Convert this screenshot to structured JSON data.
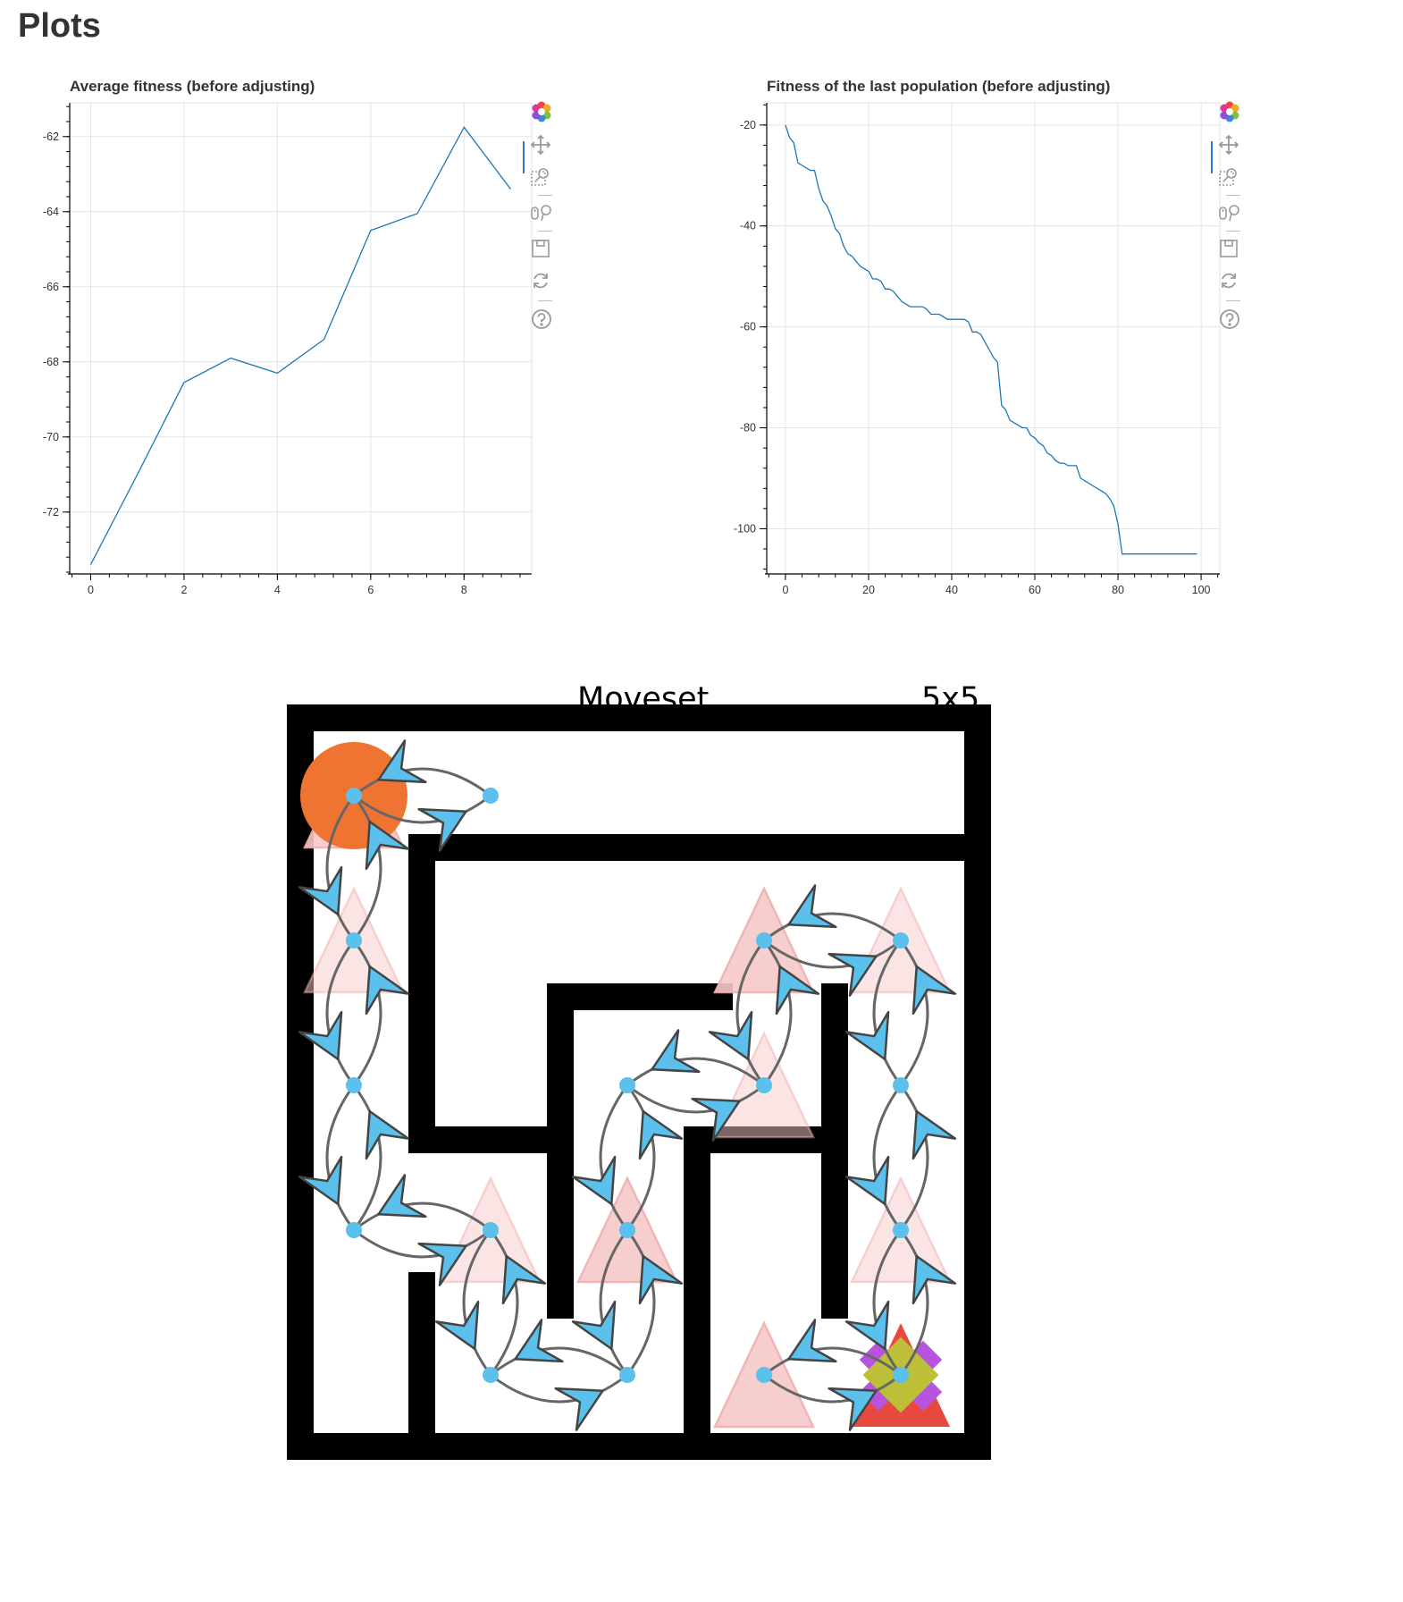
{
  "page": {
    "heading": "Plots"
  },
  "plots": [
    {
      "id": "avg",
      "title": "Average fitness (before adjusting)"
    },
    {
      "id": "last",
      "title": "Fitness of the last population (before adjusting)"
    }
  ],
  "toolbar": {
    "tools": [
      {
        "name": "bokeh-logo",
        "icon": "bokeh-logo-icon"
      },
      {
        "name": "pan-tool",
        "icon": "pan-icon"
      },
      {
        "name": "box-zoom-tool",
        "icon": "box-zoom-icon"
      },
      {
        "name": "wheel-zoom-tool",
        "icon": "wheel-zoom-icon"
      },
      {
        "name": "save-tool",
        "icon": "save-icon"
      },
      {
        "name": "reset-tool",
        "icon": "reset-icon"
      },
      {
        "name": "help-tool",
        "icon": "help-icon"
      }
    ]
  },
  "chart_data": [
    {
      "type": "line",
      "title": "Average fitness (before adjusting)",
      "xlabel": "",
      "ylabel": "",
      "xlim": [
        -0.45,
        9.45
      ],
      "ylim": [
        -73.6,
        -61.1
      ],
      "xticks": [
        0,
        2,
        4,
        6,
        8
      ],
      "yticks": [
        -62,
        -64,
        -66,
        -68,
        -70,
        -72
      ],
      "grid": true,
      "color": "#1f77b4",
      "x": [
        0,
        1,
        2,
        3,
        4,
        5,
        6,
        7,
        8,
        9
      ],
      "y": [
        -73.4,
        -71.0,
        -68.55,
        -67.9,
        -68.3,
        -67.4,
        -64.5,
        -64.05,
        -61.75,
        -63.4
      ]
    },
    {
      "type": "line",
      "title": "Fitness of the last population (before adjusting)",
      "xlabel": "",
      "ylabel": "",
      "xlim": [
        -4.5,
        104.5
      ],
      "ylim": [
        -108.6,
        -15.6
      ],
      "xticks": [
        0,
        20,
        40,
        60,
        80,
        100
      ],
      "yticks": [
        -20,
        -40,
        -60,
        -80,
        -100
      ],
      "grid": true,
      "color": "#1f77b4",
      "x": [
        0,
        1,
        2,
        3,
        4,
        5,
        6,
        7,
        8,
        9,
        10,
        11,
        12,
        13,
        14,
        15,
        16,
        17,
        18,
        19,
        20,
        21,
        22,
        23,
        24,
        25,
        26,
        27,
        28,
        29,
        30,
        31,
        32,
        33,
        34,
        35,
        36,
        37,
        38,
        39,
        40,
        41,
        42,
        43,
        44,
        45,
        46,
        47,
        48,
        49,
        50,
        51,
        52,
        53,
        54,
        55,
        56,
        57,
        58,
        59,
        60,
        61,
        62,
        63,
        64,
        65,
        66,
        67,
        68,
        69,
        70,
        71,
        72,
        73,
        74,
        75,
        76,
        77,
        78,
        79,
        80,
        81,
        82,
        83,
        84,
        85,
        86,
        87,
        88,
        89,
        90,
        91,
        92,
        93,
        94,
        95,
        96,
        97,
        98,
        99
      ],
      "y": [
        -20.0,
        -22.5,
        -23.5,
        -27.5,
        -28.0,
        -28.5,
        -29.0,
        -29.0,
        -32.5,
        -35.0,
        -36.0,
        -38.0,
        -40.5,
        -41.5,
        -44.0,
        -45.5,
        -46.0,
        -47.0,
        -48.0,
        -48.5,
        -49.0,
        -50.5,
        -50.5,
        -51.0,
        -52.5,
        -52.5,
        -53.0,
        -54.0,
        -55.0,
        -55.5,
        -56.0,
        -56.0,
        -56.0,
        -56.0,
        -56.5,
        -57.5,
        -57.5,
        -57.5,
        -58.0,
        -58.5,
        -58.5,
        -58.5,
        -58.5,
        -58.5,
        -59.0,
        -61.0,
        -61.0,
        -61.5,
        -63.0,
        -64.5,
        -66.0,
        -67.0,
        -75.5,
        -76.5,
        -78.5,
        -79.0,
        -79.5,
        -80.0,
        -80.0,
        -81.5,
        -82.0,
        -83.0,
        -83.5,
        -85.0,
        -85.5,
        -86.5,
        -87.0,
        -87.0,
        -87.5,
        -87.5,
        -87.5,
        -90.0,
        -90.5,
        -91.0,
        -91.5,
        -92.0,
        -92.5,
        -93.0,
        -94.0,
        -95.5,
        -99.0,
        -105.0,
        -105.0,
        -105.0,
        -105.0,
        -105.0,
        -105.0,
        -105.0,
        -105.0,
        -105.0,
        -105.0,
        -105.0,
        -105.0,
        -105.0,
        -105.0,
        -105.0,
        -105.0,
        -105.0,
        -105.0,
        -105.0
      ]
    }
  ],
  "maze": {
    "title": "Moveset",
    "size_label": "5x5",
    "colors": {
      "wall": "#000000",
      "agent": "#f07431",
      "node": "#5bc0eb",
      "edge": "#666666",
      "triangle_light": "#f6c9c9",
      "triangle_mid": "#f0b0b0",
      "goal_purple": "#b853e0",
      "goal_olive": "#bcbf37",
      "goal_red": "#e8493f"
    }
  }
}
